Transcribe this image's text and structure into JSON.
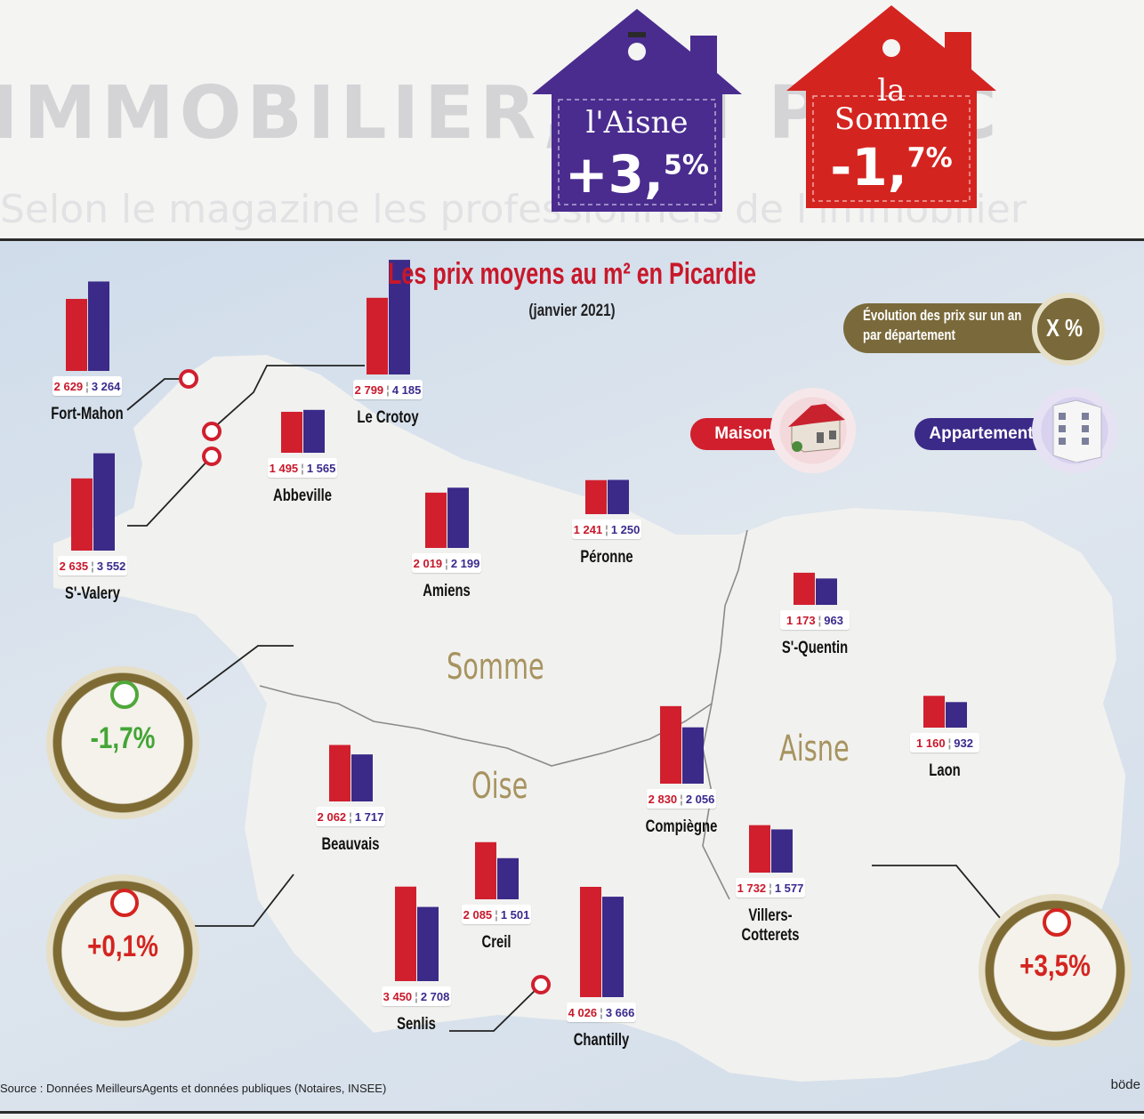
{
  "header": {
    "aisne": {
      "name": "l'Aisne",
      "pct_main": "+3,",
      "pct_sup": "5%",
      "color": "#4a2c8f"
    },
    "somme": {
      "name_line1": "la",
      "name_line2": "Somme",
      "pct_main": "-1,",
      "pct_sup": "7%",
      "color": "#d42420"
    }
  },
  "colors": {
    "maison": "#d11f2e",
    "appartement": "#3b2a88",
    "map_bg": "#d9e3ee",
    "land": "#f1f1ef"
  },
  "chart_data": {
    "type": "bar",
    "title": "Les prix moyens au m² en Picardie",
    "subtitle": "(janvier 2021)",
    "series": [
      {
        "name": "Maison",
        "color": "#d11f2e"
      },
      {
        "name": "Appartement",
        "color": "#3b2a88"
      }
    ],
    "cities": [
      {
        "name": "Fort-Mahon",
        "maison": 2629,
        "appartement": 3264,
        "maison_label": "2 629",
        "appartement_label": "3 264"
      },
      {
        "name": "Le Crotoy",
        "maison": 2799,
        "appartement": 4185,
        "maison_label": "2 799",
        "appartement_label": "4 185"
      },
      {
        "name": "S'-Valery",
        "maison": 2635,
        "appartement": 3552,
        "maison_label": "2 635",
        "appartement_label": "3 552"
      },
      {
        "name": "Abbeville",
        "maison": 1495,
        "appartement": 1565,
        "maison_label": "1 495",
        "appartement_label": "1 565"
      },
      {
        "name": "Amiens",
        "maison": 2019,
        "appartement": 2199,
        "maison_label": "2 019",
        "appartement_label": "2 199"
      },
      {
        "name": "Péronne",
        "maison": 1241,
        "appartement": 1250,
        "maison_label": "1 241",
        "appartement_label": "1 250"
      },
      {
        "name": "S'-Quentin",
        "maison": 1173,
        "appartement": 963,
        "maison_label": "1 173",
        "appartement_label": "963"
      },
      {
        "name": "Laon",
        "maison": 1160,
        "appartement": 932,
        "maison_label": "1 160",
        "appartement_label": "932"
      },
      {
        "name": "Beauvais",
        "maison": 2062,
        "appartement": 1717,
        "maison_label": "2 062",
        "appartement_label": "1 717"
      },
      {
        "name": "Compiègne",
        "maison": 2830,
        "appartement": 2056,
        "maison_label": "2 830",
        "appartement_label": "2 056"
      },
      {
        "name": "Villers-Cotterets",
        "name_line1": "Villers-",
        "name_line2": "Cotterets",
        "maison": 1732,
        "appartement": 1577,
        "maison_label": "1 732",
        "appartement_label": "1 577"
      },
      {
        "name": "Creil",
        "maison": 2085,
        "appartement": 1501,
        "maison_label": "2 085",
        "appartement_label": "1 501"
      },
      {
        "name": "Chantilly",
        "maison": 4026,
        "appartement": 3666,
        "maison_label": "4 026",
        "appartement_label": "3 666"
      },
      {
        "name": "Senlis",
        "maison": 3450,
        "appartement": 2708,
        "maison_label": "3 450",
        "appartement_label": "2 708"
      }
    ],
    "departments": [
      {
        "name": "Somme",
        "evolution": "-1,7%",
        "color": "#4fa83a"
      },
      {
        "name": "Oise",
        "evolution": "+0,1%",
        "color": "#d42420"
      },
      {
        "name": "Aisne",
        "evolution": "+3,5%",
        "color": "#d42420"
      }
    ],
    "legend": {
      "evolution_label_line1": "Évolution des prix sur un an",
      "evolution_label_line2": "par département",
      "evolution_symbol": "X %",
      "maison": "Maison",
      "appartement": "Appartement"
    }
  },
  "source": "Source : Données MeilleursAgents et données publiques (Notaires, INSEE)",
  "credit": "böde"
}
